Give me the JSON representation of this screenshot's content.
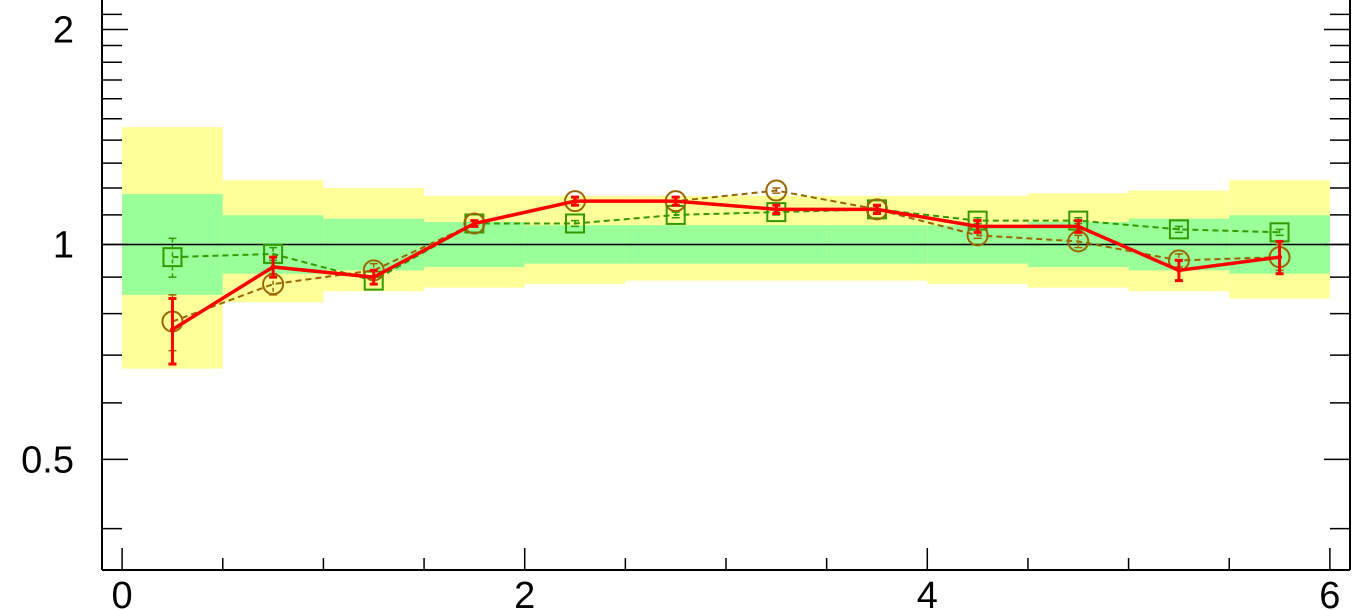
{
  "chart_data": {
    "type": "line",
    "title": "",
    "xlabel": "",
    "ylabel": "",
    "xlim": [
      -0.1,
      6.1
    ],
    "ylim": [
      0.35,
      2.2
    ],
    "y_scale": "log",
    "x_ticks": [
      {
        "value": 0,
        "label": "0"
      },
      {
        "value": 2,
        "label": "2"
      },
      {
        "value": 4,
        "label": "4"
      },
      {
        "value": 6,
        "label": "6"
      }
    ],
    "y_ticks": [
      {
        "value": 0.5,
        "label": "0.5"
      },
      {
        "value": 1,
        "label": "1"
      },
      {
        "value": 2,
        "label": "2"
      }
    ],
    "reference_line": 1,
    "bins": [
      0,
      0.5,
      1,
      1.5,
      2,
      2.5,
      3,
      3.5,
      4,
      4.5,
      5,
      5.5,
      6
    ],
    "bands": {
      "outer": {
        "color": "#ffff99",
        "lower": [
          0.67,
          0.83,
          0.86,
          0.87,
          0.88,
          0.89,
          0.89,
          0.89,
          0.88,
          0.87,
          0.86,
          0.84
        ],
        "upper": [
          1.46,
          1.23,
          1.2,
          1.17,
          1.17,
          1.17,
          1.17,
          1.17,
          1.17,
          1.18,
          1.19,
          1.23
        ]
      },
      "inner": {
        "color": "#99ff99",
        "lower": [
          0.85,
          0.91,
          0.92,
          0.93,
          0.94,
          0.94,
          0.94,
          0.94,
          0.94,
          0.93,
          0.92,
          0.91
        ]
      }
    },
    "series": [
      {
        "style": "red-solid",
        "color": "#ff0000",
        "marker": "none",
        "x": [
          0.25,
          0.75,
          1.25,
          1.75,
          2.25,
          2.75,
          3.25,
          3.75,
          4.25,
          4.75,
          5.25,
          5.75
        ],
        "y": [
          0.76,
          0.93,
          0.9,
          1.07,
          1.15,
          1.15,
          1.12,
          1.12,
          1.06,
          1.06,
          0.92,
          0.96
        ],
        "err": [
          0.08,
          0.03,
          0.02,
          0.01,
          0.015,
          0.015,
          0.015,
          0.015,
          0.02,
          0.02,
          0.03,
          0.05
        ]
      },
      {
        "style": "brown-dashed",
        "color": "#996600",
        "marker": "circle",
        "x": [
          0.25,
          0.75,
          1.25,
          1.75,
          2.25,
          2.75,
          3.25,
          3.75,
          4.25,
          4.75,
          5.25,
          5.75
        ],
        "y": [
          0.78,
          0.88,
          0.92,
          1.07,
          1.15,
          1.15,
          1.19,
          1.12,
          1.03,
          1.01,
          0.95,
          0.96
        ],
        "err": [
          0.07,
          0.03,
          0.02,
          0.01,
          0.015,
          0.015,
          0.01,
          0.015,
          0.01,
          0.02,
          0.02,
          0.04
        ]
      },
      {
        "style": "green-dashed",
        "color": "#339900",
        "marker": "square",
        "x": [
          0.25,
          0.75,
          1.25,
          1.75,
          2.25,
          2.75,
          3.25,
          3.75,
          4.25,
          4.75,
          5.25,
          5.75
        ],
        "y": [
          0.96,
          0.97,
          0.89,
          1.07,
          1.07,
          1.1,
          1.11,
          1.12,
          1.08,
          1.08,
          1.05,
          1.04
        ],
        "err": [
          0.06,
          0.02,
          0.01,
          0.01,
          0.01,
          0.01,
          0.01,
          0.01,
          0.01,
          0.01,
          0.01,
          0.01
        ]
      }
    ]
  }
}
